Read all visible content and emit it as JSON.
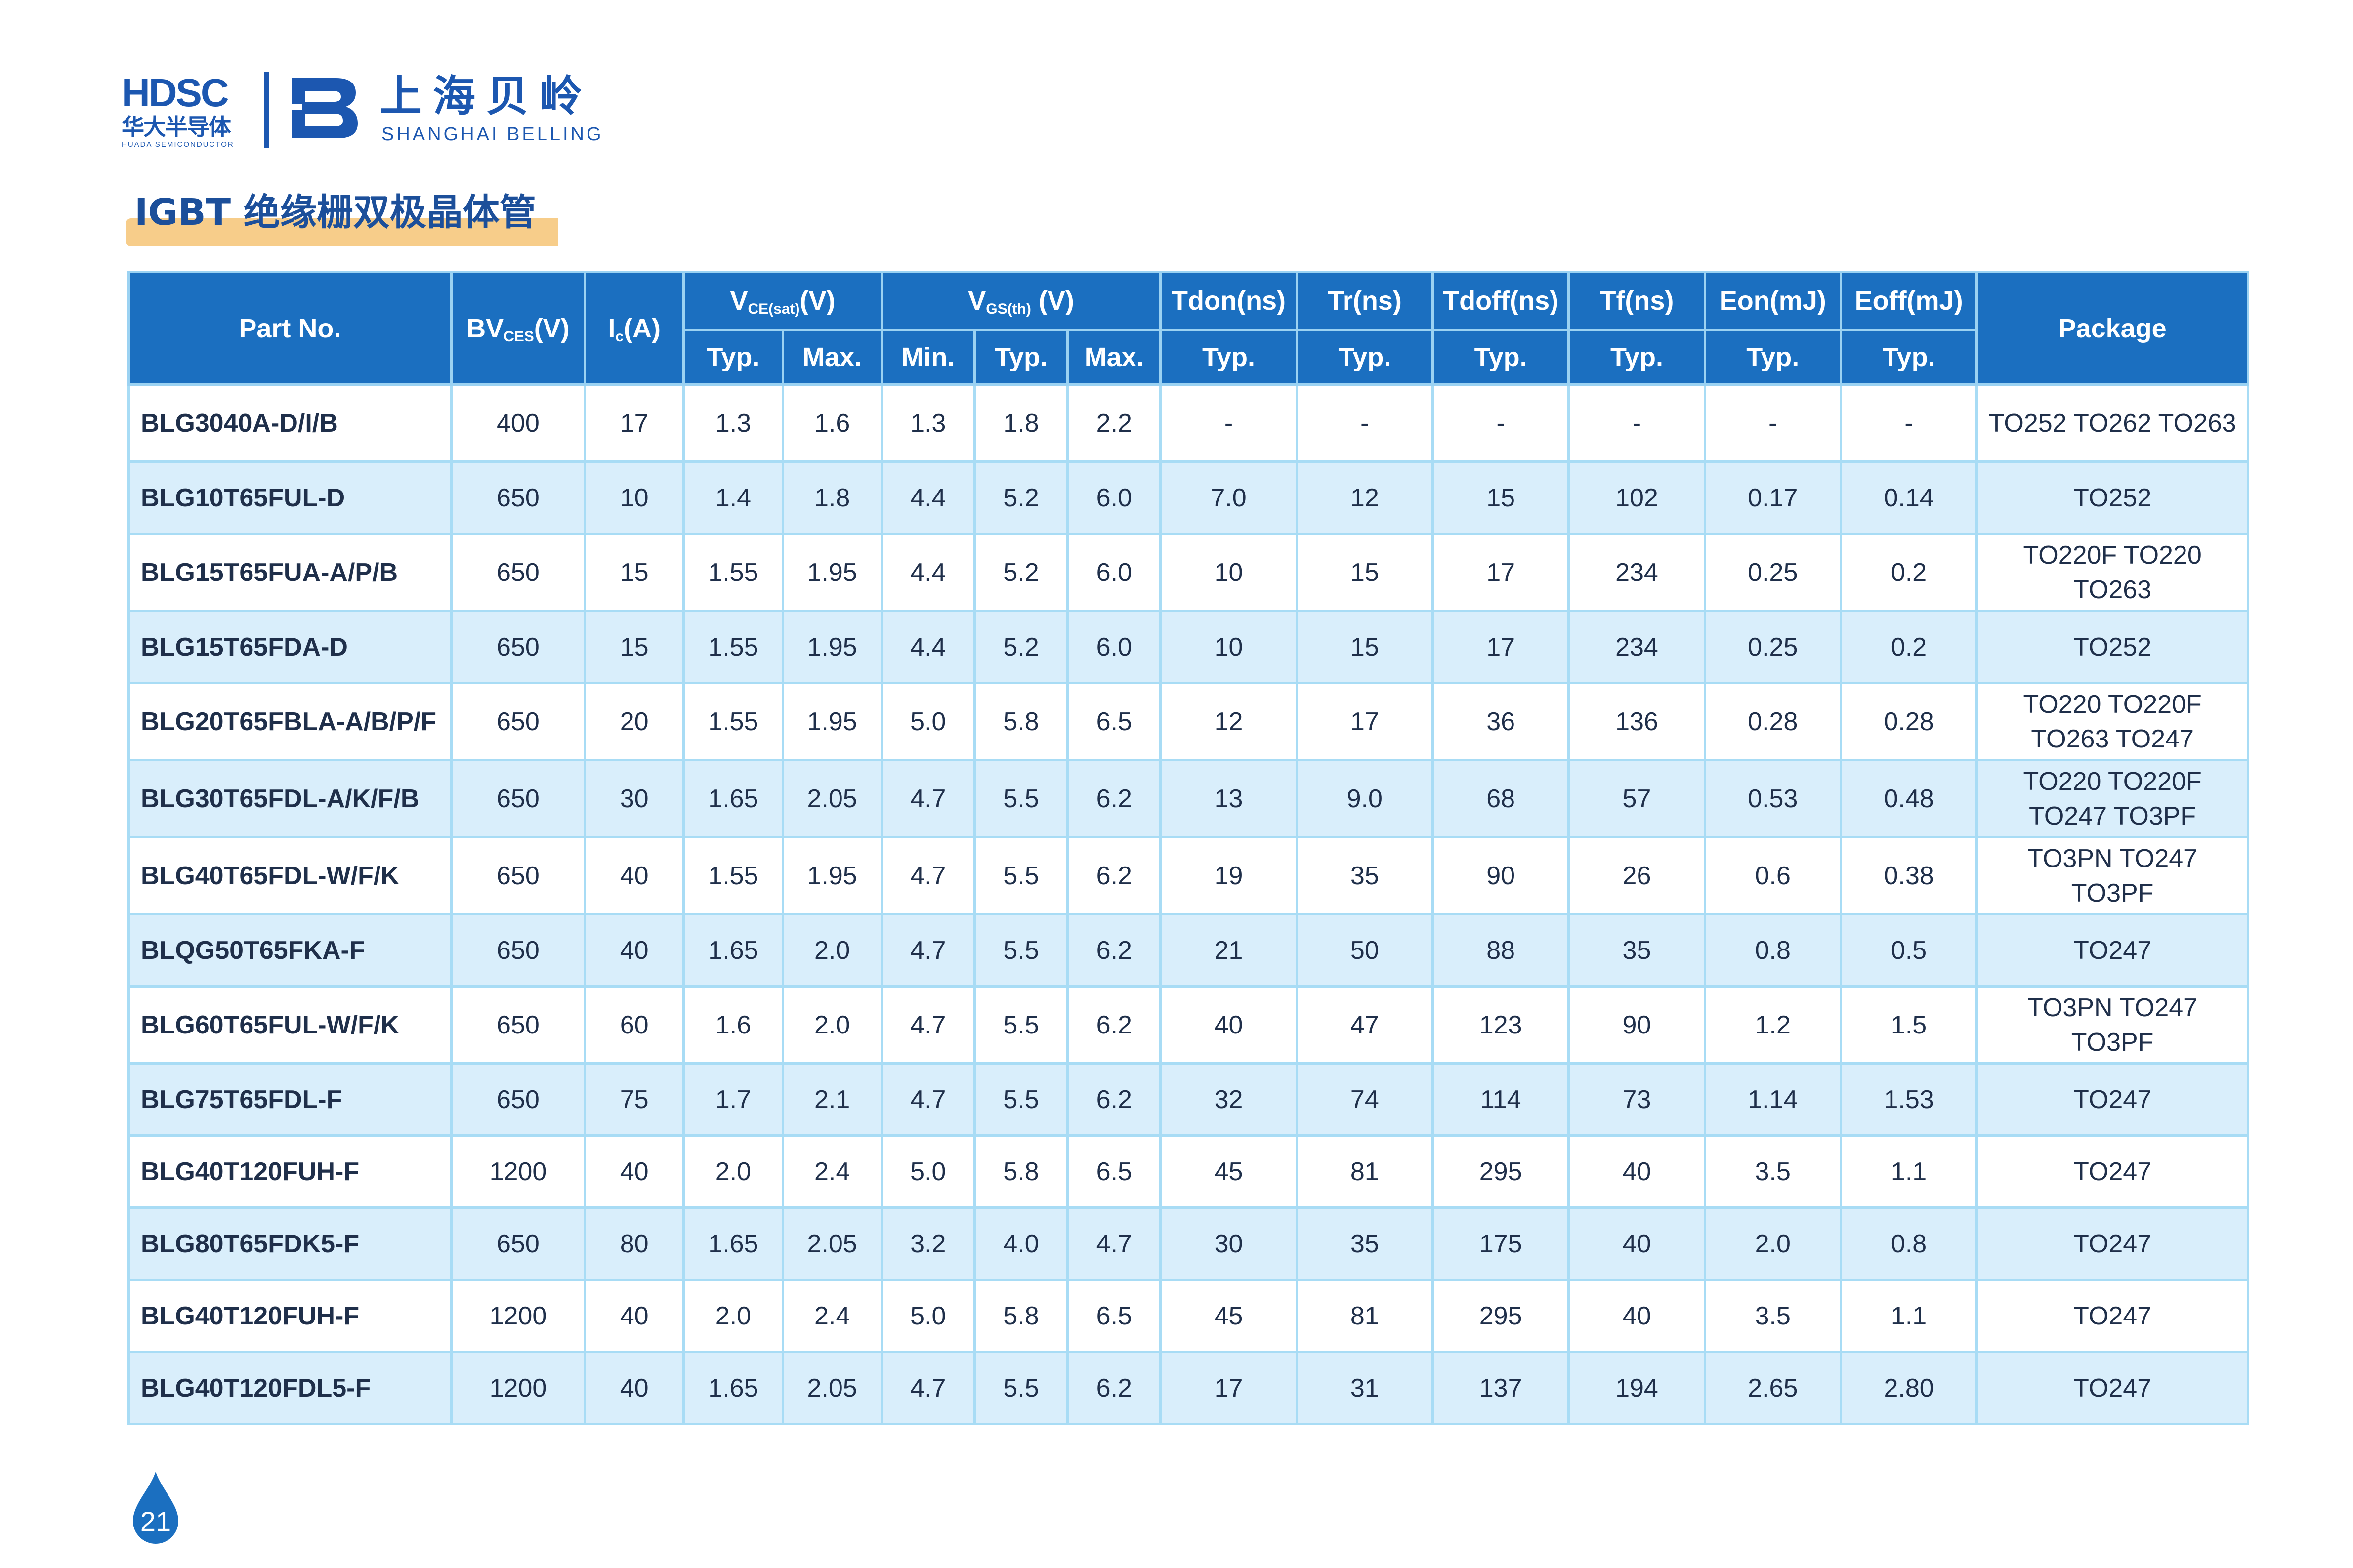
{
  "brand": {
    "hdsc_mark": "HDSC",
    "hdsc_cn": "华大半导体",
    "hdsc_en": "HUADA SEMICONDUCTOR",
    "belling_cn": "上海贝岭",
    "belling_en": "SHANGHAI BELLING",
    "color": "#1c57b0"
  },
  "title": "IGBT 绝缘栅双极晶体管",
  "colors": {
    "header_bg": "#1b6fc0",
    "row_alt_bg": "#d9eefb",
    "border": "#a8dcf5",
    "title_highlight": "#f7cd8a"
  },
  "table": {
    "headers": {
      "part_no": "Part No.",
      "bv_main": "BV",
      "bv_sub": "CES",
      "bv_unit": "(V)",
      "ic_main": "I",
      "ic_sub": "c",
      "ic_unit": "(A)",
      "vce_main": "V",
      "vce_sub": "CE(sat)",
      "vce_unit": "(V)",
      "vgs_main": "V",
      "vgs_sub": "GS(th)",
      "vgs_unit": " (V)",
      "tdon": "Tdon(ns)",
      "tr": "Tr(ns)",
      "tdoff": "Tdoff(ns)",
      "tf": "Tf(ns)",
      "eon": "Eon(mJ)",
      "eoff": "Eoff(mJ)",
      "package": "Package",
      "typ": "Typ.",
      "max": "Max.",
      "min": "Min."
    },
    "rows": [
      [
        "BLG3040A-D/I/B",
        "400",
        "17",
        "1.3",
        "1.6",
        "1.3",
        "1.8",
        "2.2",
        "-",
        "-",
        "-",
        "-",
        "-",
        "-",
        "TO252 TO262 TO263"
      ],
      [
        "BLG10T65FUL-D",
        "650",
        "10",
        "1.4",
        "1.8",
        "4.4",
        "5.2",
        "6.0",
        "7.0",
        "12",
        "15",
        "102",
        "0.17",
        "0.14",
        "TO252"
      ],
      [
        "BLG15T65FUA-A/P/B",
        "650",
        "15",
        "1.55",
        "1.95",
        "4.4",
        "5.2",
        "6.0",
        "10",
        "15",
        "17",
        "234",
        "0.25",
        "0.2",
        "TO220F TO220 TO263"
      ],
      [
        "BLG15T65FDA-D",
        "650",
        "15",
        "1.55",
        "1.95",
        "4.4",
        "5.2",
        "6.0",
        "10",
        "15",
        "17",
        "234",
        "0.25",
        "0.2",
        "TO252"
      ],
      [
        "BLG20T65FBLA-A/B/P/F",
        "650",
        "20",
        "1.55",
        "1.95",
        "5.0",
        "5.8",
        "6.5",
        "12",
        "17",
        "36",
        "136",
        "0.28",
        "0.28",
        "TO220 TO220F TO263 TO247"
      ],
      [
        "BLG30T65FDL-A/K/F/B",
        "650",
        "30",
        "1.65",
        "2.05",
        "4.7",
        "5.5",
        "6.2",
        "13",
        "9.0",
        "68",
        "57",
        "0.53",
        "0.48",
        "TO220 TO220F TO247 TO3PF"
      ],
      [
        "BLG40T65FDL-W/F/K",
        "650",
        "40",
        "1.55",
        "1.95",
        "4.7",
        "5.5",
        "6.2",
        "19",
        "35",
        "90",
        "26",
        "0.6",
        "0.38",
        "TO3PN TO247 TO3PF"
      ],
      [
        "BLQG50T65FKA-F",
        "650",
        "40",
        "1.65",
        "2.0",
        "4.7",
        "5.5",
        "6.2",
        "21",
        "50",
        "88",
        "35",
        "0.8",
        "0.5",
        "TO247"
      ],
      [
        "BLG60T65FUL-W/F/K",
        "650",
        "60",
        "1.6",
        "2.0",
        "4.7",
        "5.5",
        "6.2",
        "40",
        "47",
        "123",
        "90",
        "1.2",
        "1.5",
        "TO3PN TO247 TO3PF"
      ],
      [
        "BLG75T65FDL-F",
        "650",
        "75",
        "1.7",
        "2.1",
        "4.7",
        "5.5",
        "6.2",
        "32",
        "74",
        "114",
        "73",
        "1.14",
        "1.53",
        "TO247"
      ],
      [
        "BLG40T120FUH-F",
        "1200",
        "40",
        "2.0",
        "2.4",
        "5.0",
        "5.8",
        "6.5",
        "45",
        "81",
        "295",
        "40",
        "3.5",
        "1.1",
        "TO247"
      ],
      [
        "BLG80T65FDK5-F",
        "650",
        "80",
        "1.65",
        "2.05",
        "3.2",
        "4.0",
        "4.7",
        "30",
        "35",
        "175",
        "40",
        "2.0",
        "0.8",
        "TO247"
      ],
      [
        "BLG40T120FUH-F",
        "1200",
        "40",
        "2.0",
        "2.4",
        "5.0",
        "5.8",
        "6.5",
        "45",
        "81",
        "295",
        "40",
        "3.5",
        "1.1",
        "TO247"
      ],
      [
        "BLG40T120FDL5-F",
        "1200",
        "40",
        "1.65",
        "2.05",
        "4.7",
        "5.5",
        "6.2",
        "17",
        "31",
        "137",
        "194",
        "2.65",
        "2.80",
        "TO247"
      ]
    ]
  },
  "page_number": "21"
}
